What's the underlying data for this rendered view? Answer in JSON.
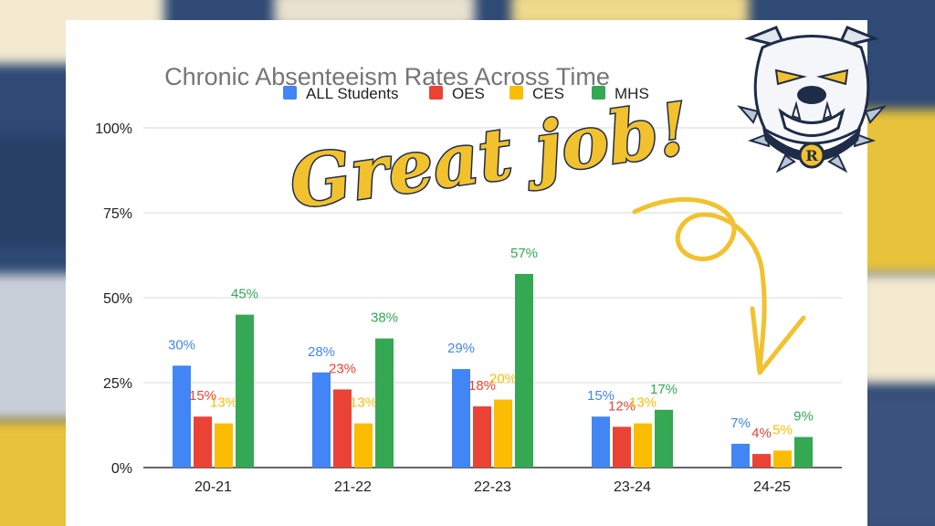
{
  "background_colors": {
    "navy": "#2f4a75",
    "gold": "#e8c23a",
    "cream": "#f3ead0"
  },
  "headline": "Great job!",
  "logo": {
    "letter": "R"
  },
  "chart_data": {
    "type": "bar",
    "title": "Chronic Absenteeism Rates Across Time",
    "categories": [
      "20-21",
      "21-22",
      "22-23",
      "23-24",
      "24-25"
    ],
    "series": [
      {
        "name": "ALL Students",
        "color": "#4285f4",
        "values": [
          30,
          28,
          29,
          15,
          7
        ]
      },
      {
        "name": "OES",
        "color": "#ea4335",
        "values": [
          15,
          23,
          18,
          12,
          4
        ]
      },
      {
        "name": "CES",
        "color": "#fbbc04",
        "values": [
          13,
          13,
          20,
          13,
          5
        ]
      },
      {
        "name": "MHS",
        "color": "#34a853",
        "values": [
          45,
          38,
          57,
          17,
          9
        ]
      }
    ],
    "yticks": [
      "0%",
      "25%",
      "50%",
      "75%",
      "100%"
    ],
    "ylim": [
      0,
      100
    ],
    "value_suffix": "%",
    "grid": true,
    "legend": "top-center"
  }
}
